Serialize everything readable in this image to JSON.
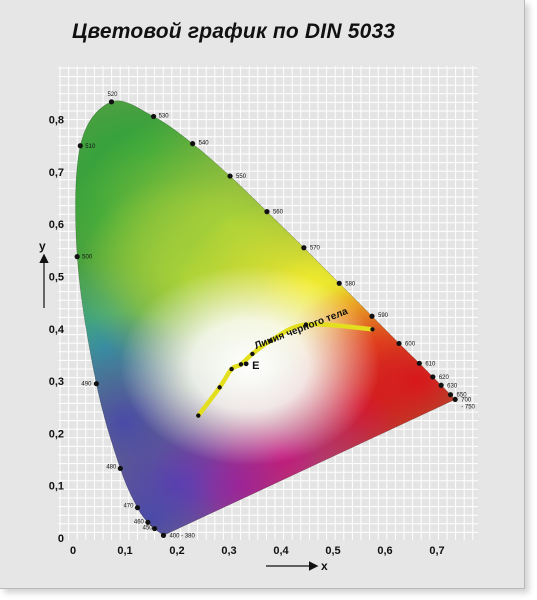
{
  "title": "Цветовой график по DIN 5033",
  "chart_data": {
    "type": "scatter",
    "title": "Цветовой график по DIN 5033",
    "xlabel": "x",
    "ylabel": "y",
    "xlim": [
      0,
      0.8
    ],
    "ylim": [
      0,
      0.85
    ],
    "grid": true,
    "x_ticks": [
      {
        "value": 0,
        "label": "0"
      },
      {
        "value": 0.1,
        "label": "0,1"
      },
      {
        "value": 0.2,
        "label": "0,2"
      },
      {
        "value": 0.3,
        "label": "0,3"
      },
      {
        "value": 0.4,
        "label": "0,4"
      },
      {
        "value": 0.5,
        "label": "0,5"
      },
      {
        "value": 0.6,
        "label": "0,6"
      },
      {
        "value": 0.7,
        "label": "0,7"
      }
    ],
    "y_ticks": [
      {
        "value": 0,
        "label": "0"
      },
      {
        "value": 0.1,
        "label": "0,1"
      },
      {
        "value": 0.2,
        "label": "0,2"
      },
      {
        "value": 0.3,
        "label": "0,3"
      },
      {
        "value": 0.4,
        "label": "0,4"
      },
      {
        "value": 0.5,
        "label": "0,5"
      },
      {
        "value": 0.6,
        "label": "0,6"
      },
      {
        "value": 0.7,
        "label": "0,7"
      },
      {
        "value": 0.8,
        "label": "0,8"
      }
    ],
    "spectral_locus": [
      {
        "label": "400 - 380",
        "x": 0.174,
        "y": 0.005
      },
      {
        "label": "450",
        "x": 0.157,
        "y": 0.018
      },
      {
        "label": "460",
        "x": 0.144,
        "y": 0.03
      },
      {
        "label": "470",
        "x": 0.124,
        "y": 0.058
      },
      {
        "label": "480",
        "x": 0.091,
        "y": 0.133
      },
      {
        "label": "490",
        "x": 0.045,
        "y": 0.295
      },
      {
        "label": "500",
        "x": 0.008,
        "y": 0.538
      },
      {
        "label": "510",
        "x": 0.014,
        "y": 0.75
      },
      {
        "label": "520",
        "x": 0.074,
        "y": 0.834
      },
      {
        "label": "530",
        "x": 0.155,
        "y": 0.806
      },
      {
        "label": "540",
        "x": 0.23,
        "y": 0.754
      },
      {
        "label": "550",
        "x": 0.302,
        "y": 0.692
      },
      {
        "label": "560",
        "x": 0.373,
        "y": 0.624
      },
      {
        "label": "570",
        "x": 0.444,
        "y": 0.555
      },
      {
        "label": "580",
        "x": 0.512,
        "y": 0.487
      },
      {
        "label": "590",
        "x": 0.575,
        "y": 0.424
      },
      {
        "label": "600",
        "x": 0.627,
        "y": 0.372
      },
      {
        "label": "610",
        "x": 0.666,
        "y": 0.334
      },
      {
        "label": "620",
        "x": 0.692,
        "y": 0.308
      },
      {
        "label": "630",
        "x": 0.708,
        "y": 0.292
      },
      {
        "label": "650",
        "x": 0.726,
        "y": 0.274
      },
      {
        "label": "700",
        "x": 0.735,
        "y": 0.265
      },
      {
        "label": "- 750",
        "x": 0.735,
        "y": 0.265
      }
    ],
    "blackbody": {
      "label": "Линия черного тела",
      "points": [
        {
          "x": 0.241,
          "y": 0.234
        },
        {
          "x": 0.282,
          "y": 0.288
        },
        {
          "x": 0.305,
          "y": 0.323
        },
        {
          "x": 0.323,
          "y": 0.332
        },
        {
          "x": 0.345,
          "y": 0.352
        },
        {
          "x": 0.38,
          "y": 0.377
        },
        {
          "x": 0.448,
          "y": 0.408
        },
        {
          "x": 0.576,
          "y": 0.399
        }
      ]
    },
    "white_point": {
      "label": "E",
      "x": 0.333,
      "y": 0.333
    }
  }
}
